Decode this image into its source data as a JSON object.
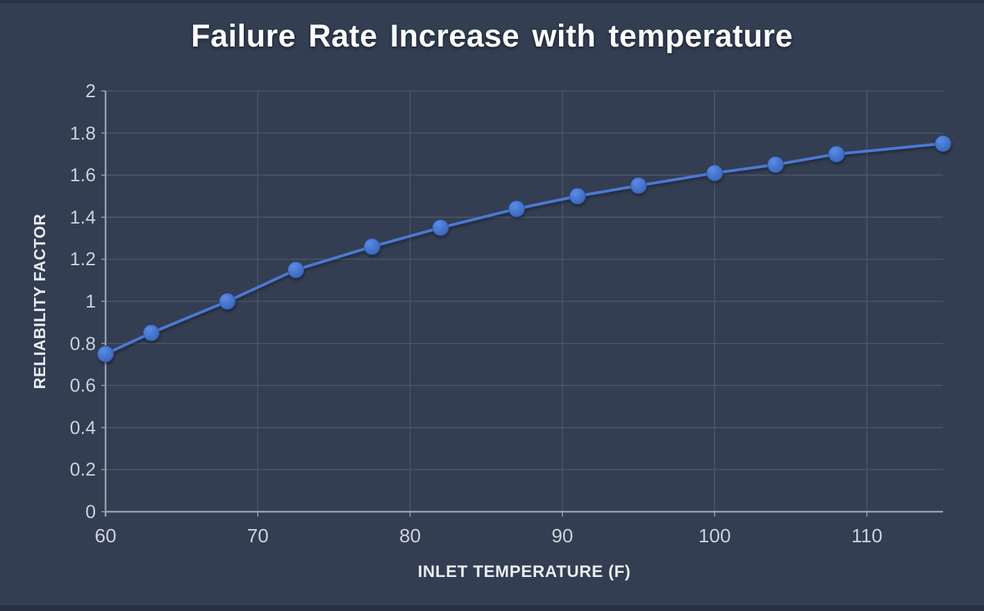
{
  "title": "Failure Rate Increase with temperature",
  "axes": {
    "x_title": "INLET TEMPERATURE (F)",
    "y_title": "RELIABILITY FACTOR"
  },
  "colors": {
    "background": "#333e52",
    "edge_band": "#2b3547",
    "gridline": "#4f5a6b",
    "axis_line": "#9aa2ae",
    "tick_label": "#ccd2da",
    "axis_title": "#e9ecf1",
    "chart_title": "#fcfdfe",
    "series_line": "#4b79d3",
    "marker_fill": "#4576ce",
    "marker_fill_light": "#5e8ae6",
    "marker_fill_dark": "#3c65b8",
    "marker_stroke": "#31539b"
  },
  "chart_data": {
    "type": "line",
    "title": "Failure Rate Increase with temperature",
    "xlabel": "INLET TEMPERATURE (F)",
    "ylabel": "RELIABILITY FACTOR",
    "x": [
      60,
      63,
      68,
      72.5,
      77.5,
      82,
      87,
      91,
      95,
      100,
      104,
      108,
      115
    ],
    "y": [
      0.75,
      0.85,
      1.0,
      1.15,
      1.26,
      1.35,
      1.44,
      1.5,
      1.55,
      1.61,
      1.65,
      1.7,
      1.75
    ],
    "xlim": [
      60,
      115
    ],
    "ylim": [
      0,
      2
    ],
    "x_ticks": [
      60,
      70,
      80,
      90,
      100,
      110
    ],
    "x_tick_labels": [
      "60",
      "70",
      "80",
      "90",
      "100",
      "110"
    ],
    "y_ticks": [
      0,
      0.2,
      0.4,
      0.6,
      0.8,
      1,
      1.2,
      1.4,
      1.6,
      1.8,
      2
    ],
    "y_tick_labels": [
      "0",
      "0.2",
      "0.4",
      "0.6",
      "0.8",
      "1",
      "1.2",
      "1.4",
      "1.6",
      "1.8",
      "2"
    ],
    "grid": true,
    "legend": false,
    "marker": "circle"
  }
}
